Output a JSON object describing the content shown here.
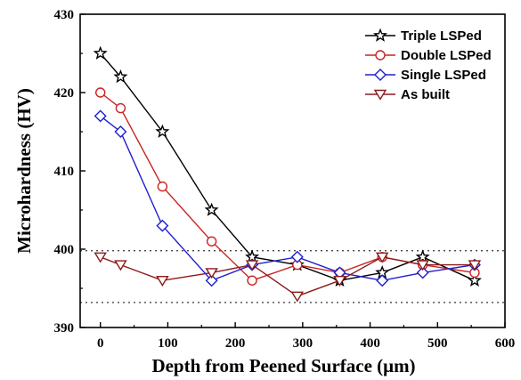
{
  "chart_data": {
    "type": "line",
    "xlabel": "Depth from Peened Surface (μm)",
    "ylabel": "Microhardness (HV)",
    "xlim": [
      -30,
      600
    ],
    "ylim": [
      390,
      430
    ],
    "xticks": [
      0,
      100,
      200,
      300,
      400,
      500,
      600
    ],
    "yticks": [
      390,
      400,
      410,
      420,
      430
    ],
    "legend_position": "top-right",
    "reference_lines": [
      {
        "axis": "y",
        "value": 399.8,
        "style": "dotted"
      },
      {
        "axis": "y",
        "value": 393.2,
        "style": "dotted"
      }
    ],
    "series": [
      {
        "name": "Triple LSPed",
        "color": "#000000",
        "marker": "star",
        "x": [
          0,
          30,
          92,
          165,
          225,
          292,
          355,
          418,
          478,
          555
        ],
        "y": [
          425,
          422,
          415,
          405,
          399,
          398,
          396,
          397,
          399,
          396
        ]
      },
      {
        "name": "Double LSPed",
        "color": "#cc2222",
        "marker": "circle",
        "x": [
          0,
          30,
          92,
          165,
          225,
          292,
          355,
          418,
          478,
          555
        ],
        "y": [
          420,
          418,
          408,
          401,
          396,
          398,
          397,
          399,
          398,
          397
        ]
      },
      {
        "name": "Single LSPed",
        "color": "#1f1fd0",
        "marker": "diamond",
        "x": [
          0,
          30,
          92,
          165,
          225,
          292,
          355,
          418,
          478,
          555
        ],
        "y": [
          417,
          415,
          403,
          396,
          398,
          399,
          397,
          396,
          397,
          398
        ]
      },
      {
        "name": "As built",
        "color": "#8b1a1a",
        "marker": "triangle-down",
        "x": [
          0,
          30,
          92,
          165,
          225,
          292,
          355,
          418,
          478,
          555
        ],
        "y": [
          399,
          398,
          396,
          397,
          398,
          394,
          396,
          399,
          398,
          398
        ]
      }
    ]
  }
}
